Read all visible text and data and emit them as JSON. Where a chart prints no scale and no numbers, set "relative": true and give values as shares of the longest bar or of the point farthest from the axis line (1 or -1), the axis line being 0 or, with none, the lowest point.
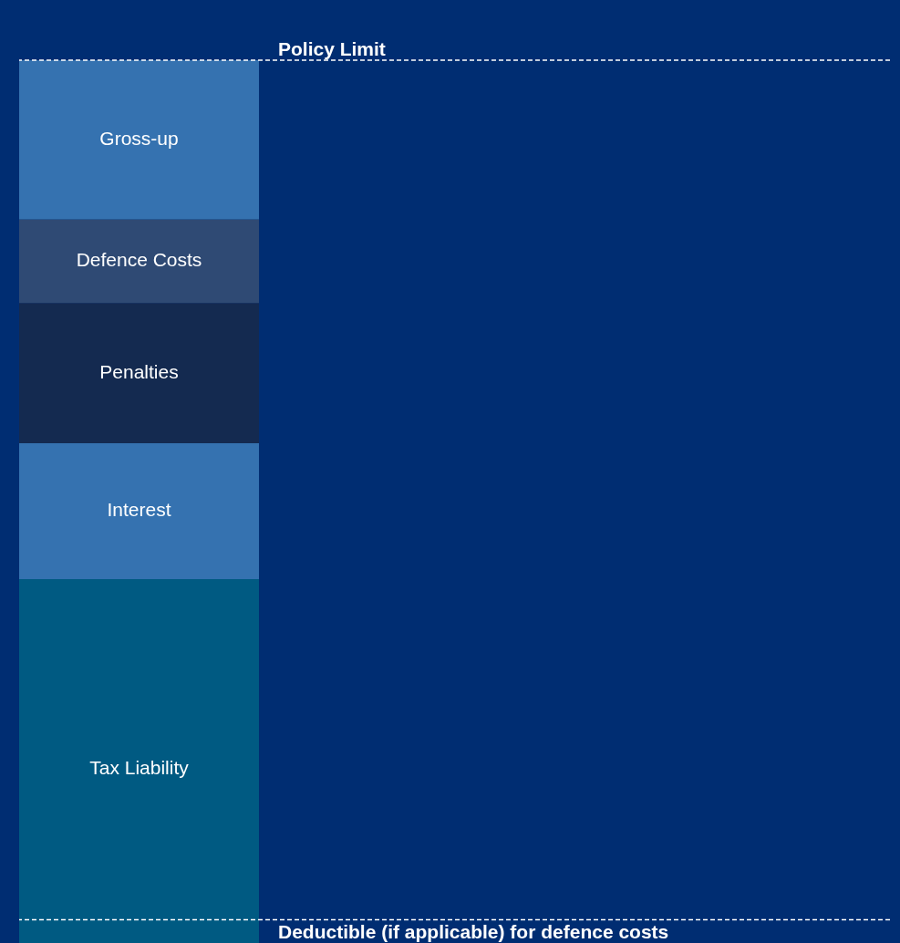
{
  "chart_data": {
    "type": "bar",
    "stacked": true,
    "relative": true,
    "categories": [
      null
    ],
    "legend": false,
    "series": [
      {
        "name": "Tax Liability",
        "color": "#005a82",
        "values": [
          0.423
        ]
      },
      {
        "name": "Interest",
        "color": "#3572b0",
        "values": [
          0.151
        ]
      },
      {
        "name": "Penalties",
        "color": "#142a50",
        "values": [
          0.156
        ]
      },
      {
        "name": "Defence Costs",
        "color": "#2f4a74",
        "values": [
          0.093
        ]
      },
      {
        "name": "Gross-up",
        "color": "#3572b0",
        "values": [
          0.177
        ]
      }
    ],
    "ref_lines": [
      {
        "axis": "y",
        "value": 1,
        "label": "Policy Limit",
        "color": "#ffffff",
        "line_style": "dashed"
      },
      {
        "axis": "y",
        "value": 0.044,
        "label": "Deductible (if applicable) for defence costs",
        "color": "#ffffff",
        "line_style": "dashed"
      }
    ]
  }
}
